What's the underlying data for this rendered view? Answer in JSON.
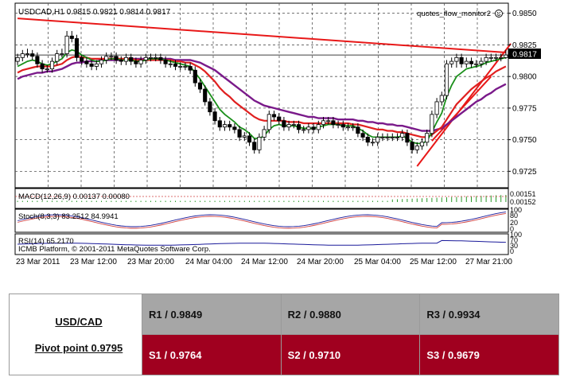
{
  "chart_data": {
    "type": "candlestick",
    "title": "USDCAD,H1  0.9815 0.9821 0.9814 0.9817",
    "indicator_label": "quotes_flow_monitor2",
    "current_price": "0.9817",
    "y_ticks": [
      "0.9850",
      "0.9825",
      "0.9800",
      "0.9775",
      "0.9750",
      "0.9725"
    ],
    "ylim": [
      0.9712,
      0.9858
    ],
    "x_ticks": [
      "23 Mar 2011",
      "23 Mar 12:00",
      "23 Mar 20:00",
      "24 Mar 04:00",
      "24 Mar 12:00",
      "24 Mar 20:00",
      "25 Mar 04:00",
      "25 Mar 12:00",
      "27 Mar 21:00"
    ],
    "bar_count": 100,
    "candles": {
      "open": [
        0.9812,
        0.9815,
        0.9818,
        0.9818,
        0.9816,
        0.981,
        0.9806,
        0.9806,
        0.9812,
        0.9818,
        0.9818,
        0.9832,
        0.983,
        0.9815,
        0.9812,
        0.981,
        0.9808,
        0.981,
        0.9813,
        0.9816,
        0.9816,
        0.9813,
        0.9812,
        0.9815,
        0.9812,
        0.981,
        0.9813,
        0.9815,
        0.9815,
        0.9815,
        0.9813,
        0.981,
        0.981,
        0.9808,
        0.9808,
        0.9808,
        0.9805,
        0.9795,
        0.979,
        0.978,
        0.9772,
        0.9765,
        0.976,
        0.9762,
        0.976,
        0.9758,
        0.9752,
        0.9753,
        0.9748,
        0.9742,
        0.9752,
        0.9758,
        0.977,
        0.9768,
        0.9765,
        0.976,
        0.9762,
        0.9762,
        0.9758,
        0.9758,
        0.976,
        0.9758,
        0.9762,
        0.9765,
        0.9765,
        0.9762,
        0.9762,
        0.976,
        0.976,
        0.976,
        0.9755,
        0.9752,
        0.9748,
        0.9748,
        0.9752,
        0.9752,
        0.9752,
        0.9752,
        0.9752,
        0.9755,
        0.9748,
        0.9742,
        0.9745,
        0.9748,
        0.9755,
        0.977,
        0.978,
        0.9785,
        0.981,
        0.9812,
        0.9815,
        0.981,
        0.9812,
        0.981,
        0.981,
        0.9812,
        0.9815,
        0.9815,
        0.9815,
        0.9815
      ],
      "close": [
        0.9815,
        0.9818,
        0.9818,
        0.9816,
        0.981,
        0.9806,
        0.9806,
        0.9812,
        0.9818,
        0.9818,
        0.9832,
        0.983,
        0.9815,
        0.9812,
        0.981,
        0.9808,
        0.981,
        0.9813,
        0.9816,
        0.9816,
        0.9813,
        0.9812,
        0.9815,
        0.9812,
        0.981,
        0.9813,
        0.9815,
        0.9815,
        0.9815,
        0.9813,
        0.981,
        0.981,
        0.9808,
        0.9808,
        0.9808,
        0.9805,
        0.9795,
        0.979,
        0.978,
        0.9772,
        0.9765,
        0.976,
        0.9762,
        0.976,
        0.9758,
        0.9752,
        0.9753,
        0.9748,
        0.9742,
        0.9752,
        0.9758,
        0.977,
        0.9768,
        0.9765,
        0.976,
        0.9762,
        0.9762,
        0.9758,
        0.9758,
        0.976,
        0.9758,
        0.9762,
        0.9765,
        0.9765,
        0.9762,
        0.9762,
        0.976,
        0.976,
        0.976,
        0.9755,
        0.9752,
        0.9748,
        0.9748,
        0.9752,
        0.9752,
        0.9752,
        0.9752,
        0.9752,
        0.9755,
        0.9748,
        0.9742,
        0.9745,
        0.9748,
        0.9755,
        0.977,
        0.978,
        0.9785,
        0.981,
        0.9812,
        0.9815,
        0.981,
        0.9812,
        0.981,
        0.981,
        0.9812,
        0.9815,
        0.9815,
        0.9815,
        0.9815,
        0.9817
      ],
      "high": [
        0.9818,
        0.9821,
        0.9822,
        0.9821,
        0.9819,
        0.9813,
        0.9809,
        0.9815,
        0.9821,
        0.9822,
        0.9836,
        0.9836,
        0.9833,
        0.9817,
        0.9815,
        0.9813,
        0.9813,
        0.9816,
        0.9819,
        0.9819,
        0.9819,
        0.9816,
        0.9818,
        0.9818,
        0.9815,
        0.9816,
        0.9818,
        0.9818,
        0.9818,
        0.9818,
        0.9816,
        0.9813,
        0.9813,
        0.9811,
        0.9811,
        0.9811,
        0.9808,
        0.9798,
        0.9793,
        0.9783,
        0.9775,
        0.9768,
        0.9765,
        0.9765,
        0.9763,
        0.9761,
        0.9756,
        0.9756,
        0.9751,
        0.9755,
        0.9761,
        0.9773,
        0.9773,
        0.9771,
        0.9768,
        0.9765,
        0.9765,
        0.9765,
        0.9761,
        0.9763,
        0.9763,
        0.9765,
        0.9768,
        0.9768,
        0.9768,
        0.9765,
        0.9765,
        0.9763,
        0.9763,
        0.9763,
        0.9758,
        0.9755,
        0.9751,
        0.9755,
        0.9755,
        0.9755,
        0.9755,
        0.9755,
        0.9758,
        0.9758,
        0.9751,
        0.9748,
        0.9751,
        0.9758,
        0.9773,
        0.9783,
        0.9788,
        0.9813,
        0.9815,
        0.9818,
        0.9818,
        0.9815,
        0.9815,
        0.9813,
        0.9815,
        0.9818,
        0.9818,
        0.9818,
        0.9818,
        0.9821
      ],
      "low": [
        0.9809,
        0.9812,
        0.9815,
        0.9813,
        0.9807,
        0.9803,
        0.9803,
        0.9803,
        0.9809,
        0.9815,
        0.9815,
        0.9827,
        0.9812,
        0.9809,
        0.9807,
        0.9805,
        0.9805,
        0.9807,
        0.981,
        0.9813,
        0.981,
        0.9809,
        0.9809,
        0.9809,
        0.9807,
        0.9807,
        0.981,
        0.9812,
        0.9812,
        0.981,
        0.9807,
        0.9807,
        0.9805,
        0.9805,
        0.9805,
        0.9802,
        0.9792,
        0.9787,
        0.9777,
        0.9769,
        0.9762,
        0.9757,
        0.9757,
        0.9757,
        0.9755,
        0.9749,
        0.9749,
        0.9745,
        0.9739,
        0.9739,
        0.9749,
        0.9755,
        0.9765,
        0.9762,
        0.9757,
        0.9757,
        0.9759,
        0.9755,
        0.9755,
        0.9755,
        0.9755,
        0.9755,
        0.9759,
        0.9762,
        0.9759,
        0.9759,
        0.9757,
        0.9757,
        0.9757,
        0.9752,
        0.9749,
        0.9745,
        0.9745,
        0.9745,
        0.9749,
        0.9749,
        0.9749,
        0.9749,
        0.9749,
        0.9745,
        0.9739,
        0.9739,
        0.9742,
        0.9745,
        0.9752,
        0.9767,
        0.9777,
        0.9782,
        0.9807,
        0.9807,
        0.9807,
        0.9807,
        0.9807,
        0.9807,
        0.9807,
        0.9809,
        0.9812,
        0.9812,
        0.9812,
        0.9814
      ]
    },
    "ma_fast": [
      0.9808,
      0.981,
      0.9812,
      0.9813,
      0.9812,
      0.981,
      0.9809,
      0.981,
      0.9812,
      0.9814,
      0.9819,
      0.9821,
      0.982,
      0.9817,
      0.9815,
      0.9813,
      0.9812,
      0.9812,
      0.9813,
      0.9814,
      0.9814,
      0.9813,
      0.9813,
      0.9813,
      0.9812,
      0.9812,
      0.9813,
      0.9814,
      0.9814,
      0.9814,
      0.9813,
      0.9812,
      0.9811,
      0.981,
      0.9809,
      0.9808,
      0.9803,
      0.9798,
      0.9792,
      0.9786,
      0.978,
      0.9774,
      0.977,
      0.9767,
      0.9764,
      0.976,
      0.9758,
      0.9755,
      0.9751,
      0.9751,
      0.9753,
      0.9758,
      0.9761,
      0.9762,
      0.9761,
      0.9761,
      0.9761,
      0.976,
      0.9759,
      0.9759,
      0.9759,
      0.976,
      0.9761,
      0.9762,
      0.9762,
      0.9762,
      0.9761,
      0.9761,
      0.9761,
      0.9759,
      0.9757,
      0.9754,
      0.9752,
      0.9752,
      0.9752,
      0.9752,
      0.9752,
      0.9752,
      0.9753,
      0.9751,
      0.9748,
      0.9747,
      0.9747,
      0.9749,
      0.9756,
      0.9764,
      0.9771,
      0.9784,
      0.9793,
      0.98,
      0.9803,
      0.9806,
      0.9807,
      0.9808,
      0.9809,
      0.9811,
      0.9812,
      0.9813,
      0.9814,
      0.9815
    ],
    "ma_mid": [
      0.9803,
      0.9805,
      0.9806,
      0.9807,
      0.9808,
      0.9808,
      0.9808,
      0.9808,
      0.9809,
      0.981,
      0.9813,
      0.9815,
      0.9816,
      0.9815,
      0.9815,
      0.9814,
      0.9814,
      0.9814,
      0.9814,
      0.9814,
      0.9814,
      0.9814,
      0.9814,
      0.9814,
      0.9813,
      0.9813,
      0.9813,
      0.9813,
      0.9813,
      0.9813,
      0.9813,
      0.9813,
      0.9812,
      0.9812,
      0.9811,
      0.9811,
      0.9809,
      0.9807,
      0.9804,
      0.98,
      0.9796,
      0.9791,
      0.9787,
      0.9784,
      0.978,
      0.9777,
      0.9774,
      0.9771,
      0.9768,
      0.9766,
      0.9765,
      0.9765,
      0.9765,
      0.9765,
      0.9765,
      0.9764,
      0.9764,
      0.9764,
      0.9763,
      0.9763,
      0.9763,
      0.9763,
      0.9763,
      0.9763,
      0.9763,
      0.9763,
      0.9763,
      0.9763,
      0.9762,
      0.9762,
      0.9761,
      0.976,
      0.9759,
      0.9758,
      0.9758,
      0.9757,
      0.9757,
      0.9756,
      0.9756,
      0.9755,
      0.9754,
      0.9753,
      0.9752,
      0.9752,
      0.9754,
      0.9757,
      0.976,
      0.9766,
      0.9772,
      0.9778,
      0.9782,
      0.9786,
      0.979,
      0.9793,
      0.9796,
      0.9799,
      0.9801,
      0.9804,
      0.9806,
      0.9808
    ],
    "ma_slow": [
      0.9798,
      0.98,
      0.9801,
      0.9802,
      0.9803,
      0.9803,
      0.9804,
      0.9804,
      0.9805,
      0.9806,
      0.9808,
      0.981,
      0.9811,
      0.9811,
      0.9812,
      0.9812,
      0.9812,
      0.9813,
      0.9813,
      0.9813,
      0.9813,
      0.9813,
      0.9814,
      0.9814,
      0.9814,
      0.9814,
      0.9814,
      0.9814,
      0.9814,
      0.9814,
      0.9814,
      0.9814,
      0.9813,
      0.9813,
      0.9813,
      0.9813,
      0.9812,
      0.9811,
      0.9809,
      0.9807,
      0.9805,
      0.9802,
      0.9799,
      0.9796,
      0.9793,
      0.979,
      0.9787,
      0.9784,
      0.9781,
      0.9779,
      0.9777,
      0.9776,
      0.9775,
      0.9774,
      0.9773,
      0.9772,
      0.9771,
      0.977,
      0.9769,
      0.9768,
      0.9768,
      0.9767,
      0.9767,
      0.9767,
      0.9767,
      0.9766,
      0.9766,
      0.9766,
      0.9766,
      0.9765,
      0.9765,
      0.9764,
      0.9764,
      0.9763,
      0.9763,
      0.9762,
      0.9762,
      0.9761,
      0.9761,
      0.976,
      0.9759,
      0.9758,
      0.9757,
      0.9757,
      0.9757,
      0.9758,
      0.9759,
      0.9762,
      0.9765,
      0.9768,
      0.9771,
      0.9774,
      0.9777,
      0.978,
      0.9782,
      0.9785,
      0.9787,
      0.979,
      0.9792,
      0.9794
    ],
    "trendlines": [
      {
        "from": [
          0,
          0.9846
        ],
        "to": [
          99,
          0.9819
        ]
      },
      {
        "from": [
          81,
          0.9729
        ],
        "to": [
          100,
          0.9826
        ]
      },
      {
        "from": [
          84,
          0.9749
        ],
        "to": [
          96,
          0.98
        ]
      }
    ],
    "price_line": 0.9817,
    "macd": {
      "label": "MACD(12,26,9) 0.00137 0.00080",
      "values": [
        "0.00151",
        "0.00152"
      ]
    },
    "stoch": {
      "label": "Stoch(8,3,3) 83.2512 84.9941",
      "ticks": [
        "100",
        "80",
        "20",
        "0"
      ]
    },
    "rsi": {
      "label": "RSI(14) 65.2170",
      "ticks": [
        "100",
        "70",
        "30",
        "0"
      ]
    },
    "watermark": "ICMB Platform, © 2001-2011 MetaQuotes Software Corp.",
    "colors": {
      "ma_fast": "#1a8f1a",
      "ma_mid": "#e02020",
      "ma_slow": "#7a1a8a",
      "trendline": "#e81818",
      "signal": "#1a1a9a"
    }
  },
  "pivot_table": {
    "pair": "USD/CAD",
    "pivot": "Pivot point 0.9795",
    "r1": "R1 / 0.9849",
    "r2": "R2 / 0.9880",
    "r3": "R3 / 0.9934",
    "s1": "S1 / 0.9764",
    "s2": "S2 / 0.9710",
    "s3": "S3 / 0.9679",
    "colors": {
      "resistance_bg": "#a6a6a6",
      "support_bg": "#a0001f"
    }
  }
}
